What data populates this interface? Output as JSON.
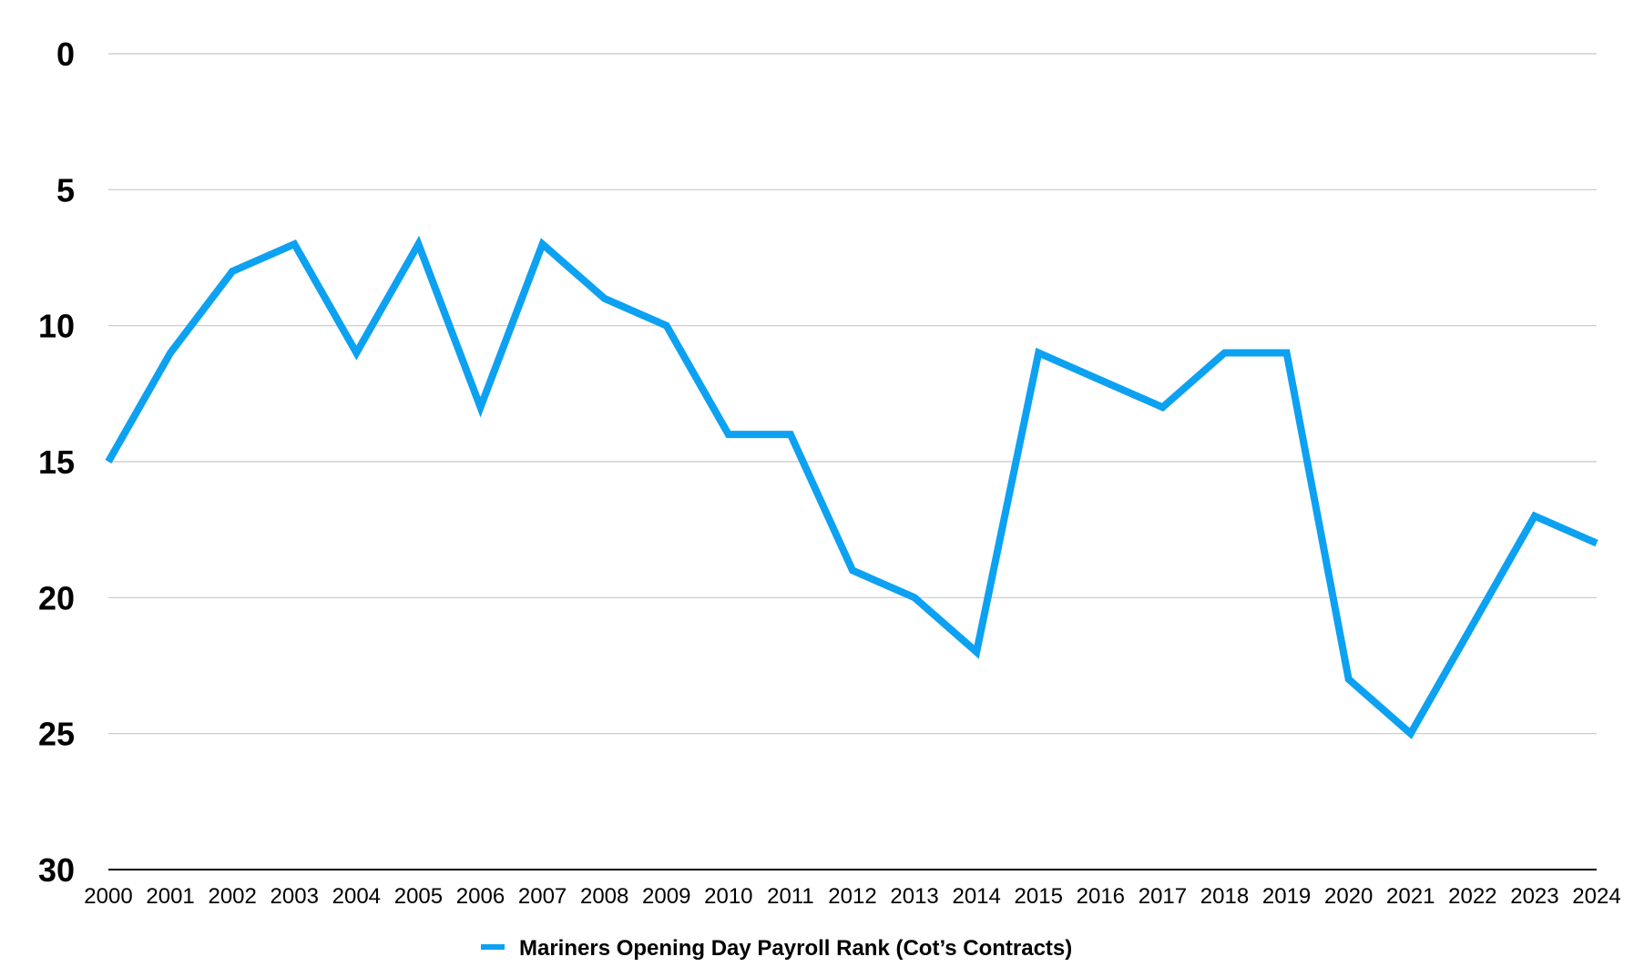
{
  "chart_data": {
    "type": "line",
    "title": "",
    "xlabel": "",
    "ylabel": "",
    "y_axis_reversed": true,
    "ylim": [
      0,
      30
    ],
    "y_ticks": [
      "0",
      "5",
      "10",
      "15",
      "20",
      "25",
      "30"
    ],
    "x": [
      "2000",
      "2001",
      "2002",
      "2003",
      "2004",
      "2005",
      "2006",
      "2007",
      "2008",
      "2009",
      "2010",
      "2011",
      "2012",
      "2013",
      "2014",
      "2015",
      "2016",
      "2017",
      "2018",
      "2019",
      "2020",
      "2021",
      "2022",
      "2023",
      "2024"
    ],
    "series": [
      {
        "name": "Mariners Opening Day Payroll Rank (Cot’s Contracts)",
        "values": [
          15,
          11,
          8,
          7,
          11,
          7,
          13,
          7,
          9,
          10,
          14,
          14,
          19,
          20,
          22,
          11,
          12,
          13,
          11,
          11,
          23,
          25,
          21,
          17,
          18
        ]
      }
    ],
    "grid": true,
    "legend_position": "bottom-center",
    "colors": {
      "series_line": "#0da1f2",
      "gridline": "#c8c8c8",
      "axis_line": "#000000"
    }
  }
}
